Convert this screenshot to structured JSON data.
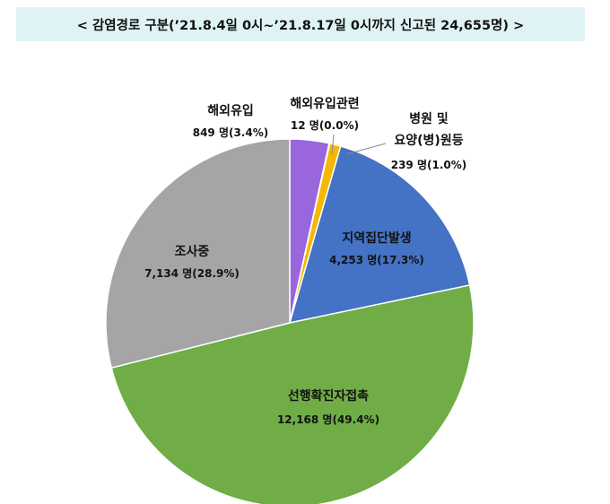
{
  "header": {
    "title": "< 감염경로 구분(’21.8.4일 0시~’21.8.17일 0시까지 신고된 24,655명) >"
  },
  "chart_data": {
    "type": "pie",
    "title": "< 감염경로 구분(’21.8.4일 0시~’21.8.17일 0시까지 신고된 24,655명) >",
    "slices": [
      {
        "name": "해외유입",
        "value": 849,
        "value_label": "849 명(3.4%)",
        "percent": 3.4,
        "color": "#9966dd"
      },
      {
        "name": "해외유입관련",
        "value": 12,
        "value_label": "12 명(0.0%)",
        "percent": 0.0,
        "color": "#b0b0b0"
      },
      {
        "name": "병원 및 요양(병)원등",
        "name_lines": [
          "병원 및",
          "요양(병)원등"
        ],
        "value": 239,
        "value_label": "239 명(1.0%)",
        "percent": 1.0,
        "color": "#f5b800"
      },
      {
        "name": "지역집단발생",
        "value": 4253,
        "value_label": "4,253 명(17.3%)",
        "percent": 17.3,
        "color": "#4472c4"
      },
      {
        "name": "선행확진자접촉",
        "value": 12168,
        "value_label": "12,168 명(49.4%)",
        "percent": 49.4,
        "color": "#70ad47"
      },
      {
        "name": "조사중",
        "value": 7134,
        "value_label": "7,134 명(28.9%)",
        "percent": 28.9,
        "color": "#a5a5a5"
      }
    ],
    "start_angle_deg": 0,
    "direction": "clockwise"
  }
}
